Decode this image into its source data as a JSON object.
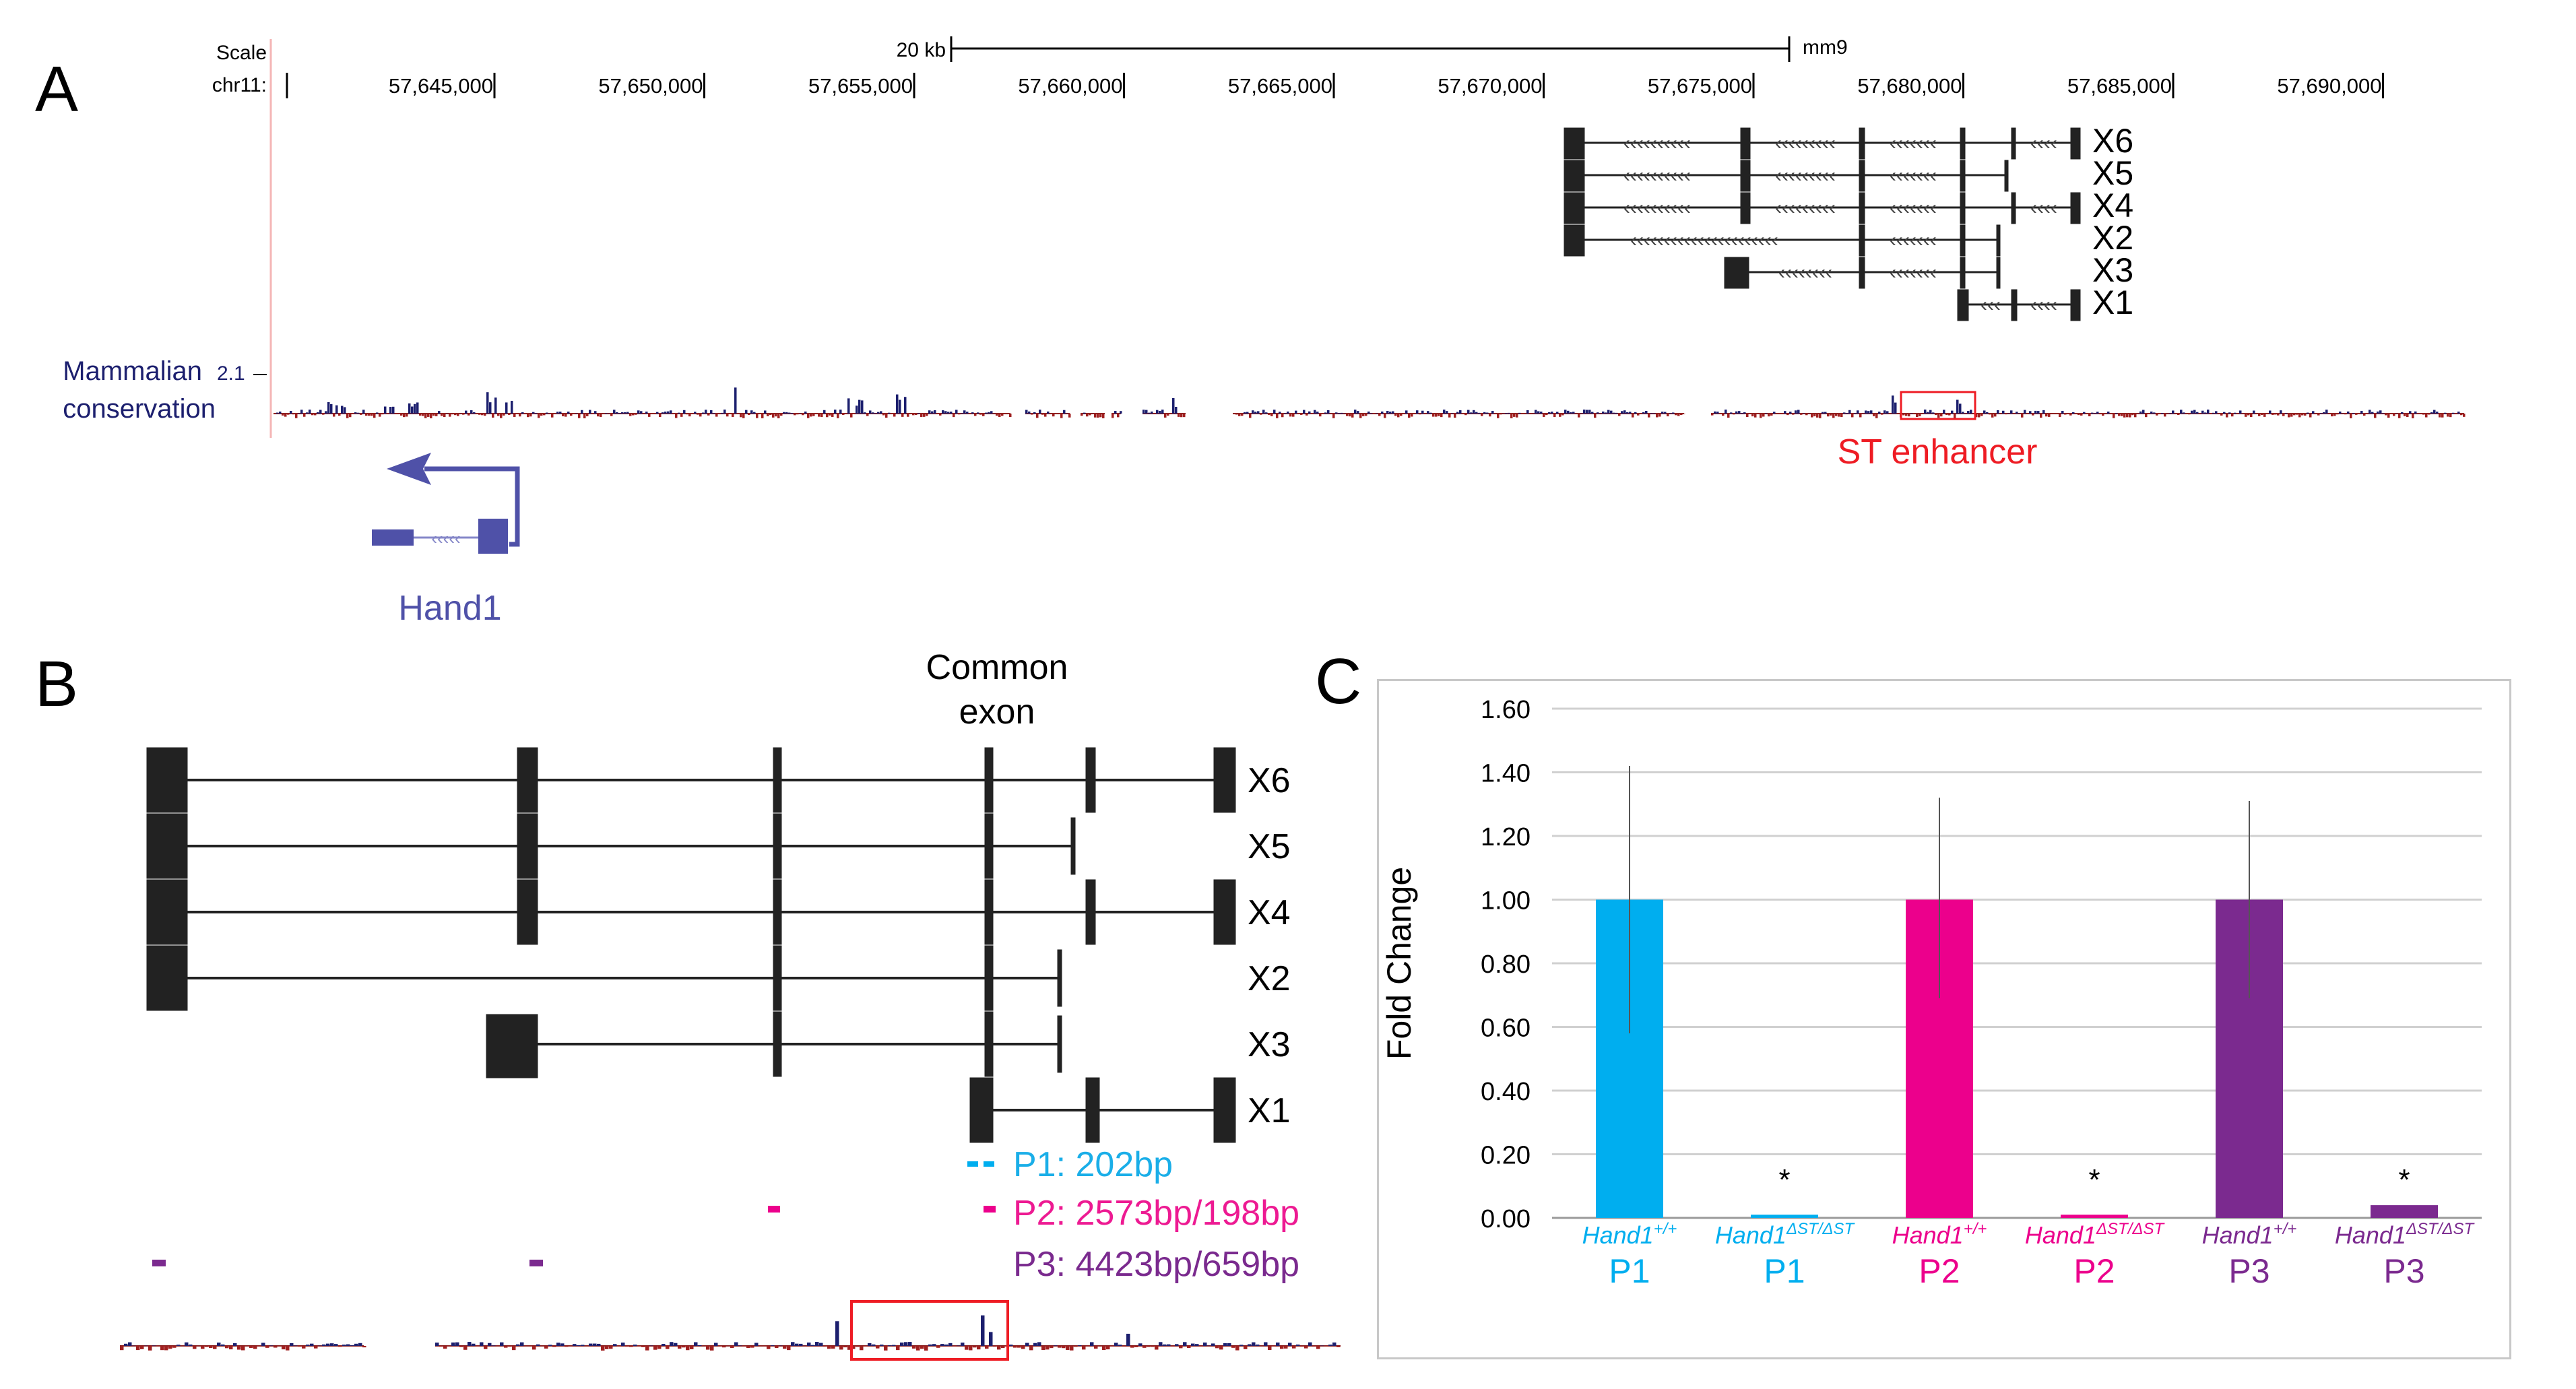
{
  "panelA": {
    "label": "A",
    "scale_label": "Scale",
    "chr_label": "chr11:",
    "scale_bar_label": "20 kb",
    "assembly": "mm9",
    "positions": [
      "57,645,000",
      "57,650,000",
      "57,655,000",
      "57,660,000",
      "57,665,000",
      "57,670,000",
      "57,675,000",
      "57,680,000",
      "57,685,000",
      "57,690,000"
    ],
    "transcripts": [
      "X6",
      "X5",
      "X4",
      "X2",
      "X3",
      "X1"
    ],
    "track_label_line1": "Mammalian",
    "track_label_line2": "conservation",
    "track_max": "2.1",
    "enhancer_label": "ST enhancer",
    "gene_label": "Hand1"
  },
  "panelB": {
    "label": "B",
    "common_exon_line1": "Common",
    "common_exon_line2": "exon",
    "transcripts": [
      "X6",
      "X5",
      "X4",
      "X2",
      "X3",
      "X1"
    ],
    "primers": [
      {
        "text": "P1: 202bp",
        "color": "#1aaee8"
      },
      {
        "text": "P2: 2573bp/198bp",
        "color": "#ed1a92"
      },
      {
        "text": "P3: 4423bp/659bp",
        "color": "#7a2a8e"
      }
    ]
  },
  "panelC": {
    "label": "C"
  },
  "colors": {
    "p1": "#00aeef",
    "p2": "#ec008c",
    "p3": "#7b2a8f",
    "gene": "#4f51a8",
    "enhancer": "#ee1c24",
    "exon": "#222222",
    "conservation": "#1c1f6e"
  },
  "chart_data": {
    "type": "bar",
    "title": "",
    "xlabel": "",
    "ylabel": "Fold Change",
    "ylim": [
      0,
      1.6
    ],
    "yticks": [
      "0.00",
      "0.20",
      "0.40",
      "0.60",
      "0.80",
      "1.00",
      "1.20",
      "1.40",
      "1.60"
    ],
    "grid": true,
    "categories": [
      {
        "genotype": "Hand1",
        "sup": "+/+",
        "probe": "P1",
        "value": 1.0,
        "err_low": 0.58,
        "err_high": 1.42,
        "sig": "",
        "color": "#00aeef"
      },
      {
        "genotype": "Hand1",
        "sup": "ΔST/ΔST",
        "probe": "P1",
        "value": 0.01,
        "err_low": 0.01,
        "err_high": 0.01,
        "sig": "*",
        "color": "#00aeef"
      },
      {
        "genotype": "Hand1",
        "sup": "+/+",
        "probe": "P2",
        "value": 1.0,
        "err_low": 0.69,
        "err_high": 1.32,
        "sig": "",
        "color": "#ec008c"
      },
      {
        "genotype": "Hand1",
        "sup": "ΔST/ΔST",
        "probe": "P2",
        "value": 0.01,
        "err_low": 0.01,
        "err_high": 0.01,
        "sig": "*",
        "color": "#ec008c"
      },
      {
        "genotype": "Hand1",
        "sup": "+/+",
        "probe": "P3",
        "value": 1.0,
        "err_low": 0.69,
        "err_high": 1.31,
        "sig": "",
        "color": "#7b2a8f"
      },
      {
        "genotype": "Hand1",
        "sup": "ΔST/ΔST",
        "probe": "P3",
        "value": 0.04,
        "err_low": 0.04,
        "err_high": 0.04,
        "sig": "*",
        "color": "#7b2a8f"
      }
    ]
  }
}
